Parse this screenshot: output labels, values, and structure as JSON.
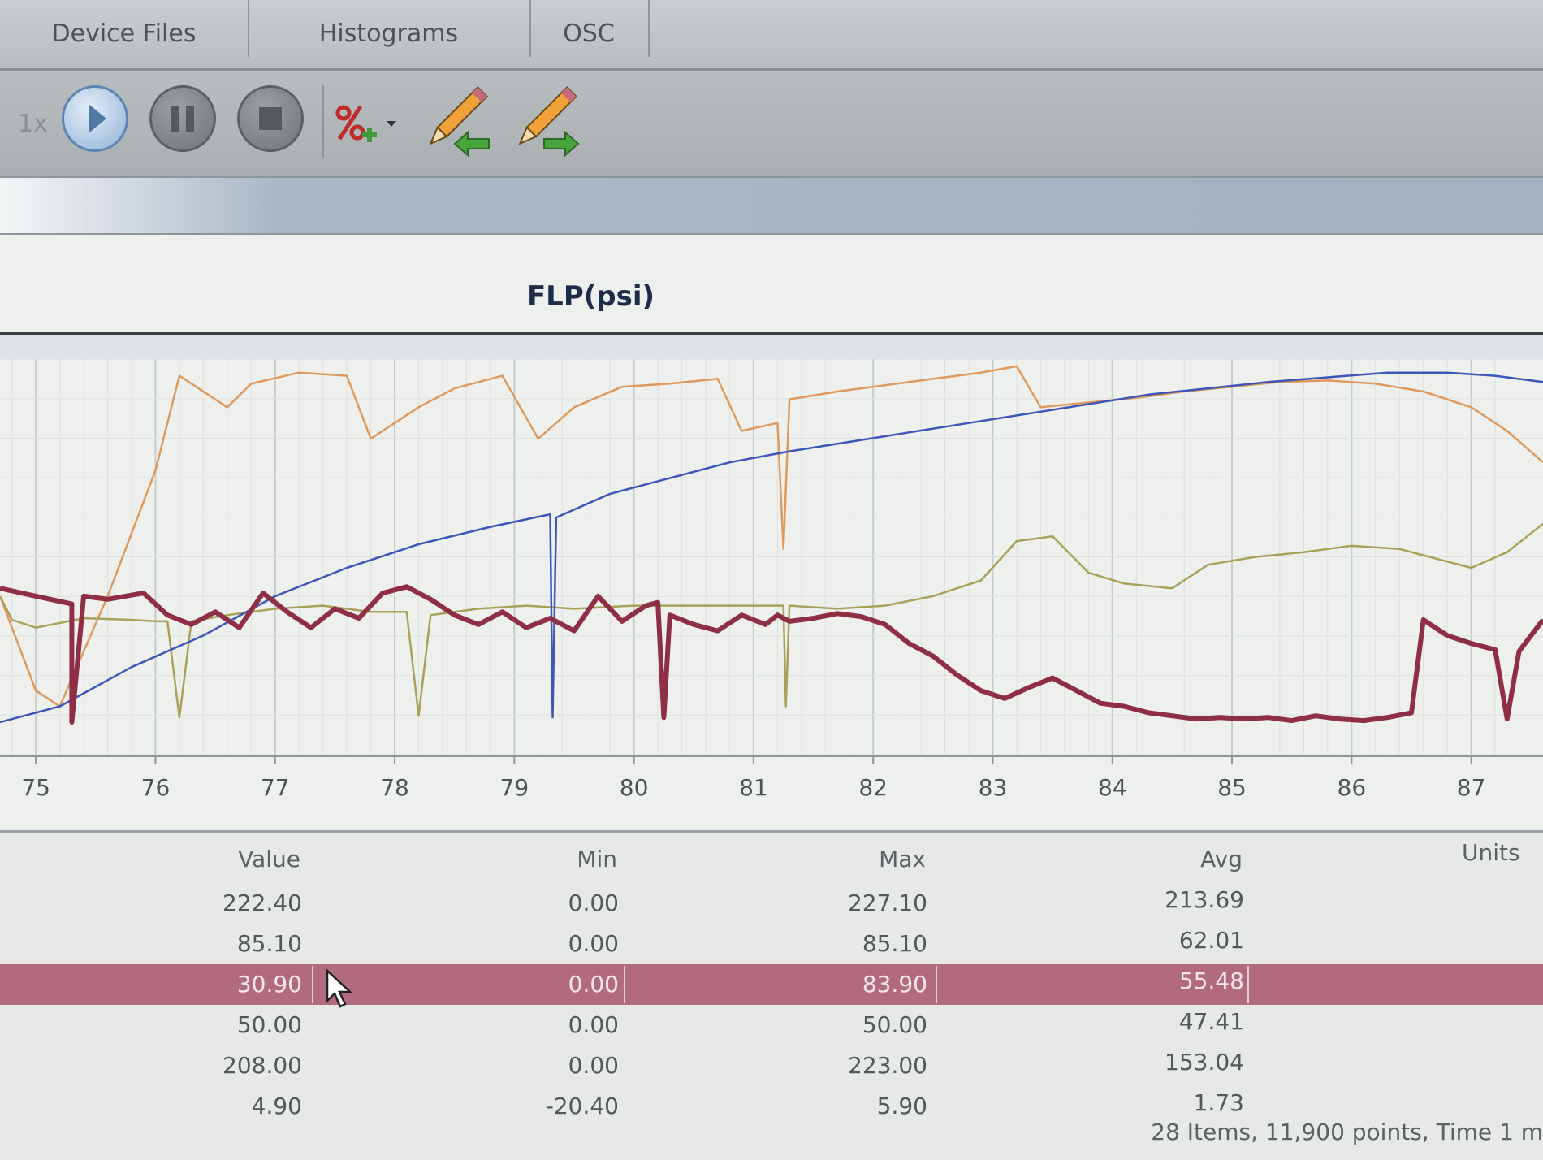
{
  "tabs": [
    "Device Files",
    "Histograms",
    "OSC"
  ],
  "toolbar": {
    "speed": "1x",
    "buttons": [
      "play-icon",
      "pause-icon",
      "stop-icon",
      "add-percent-icon",
      "pencil-left-icon",
      "pencil-right-icon"
    ]
  },
  "chart": {
    "title": "FLP(psi)",
    "x_ticks": [
      "75",
      "76",
      "77",
      "78",
      "79",
      "80",
      "81",
      "82",
      "83",
      "84",
      "85",
      "86",
      "87"
    ]
  },
  "table": {
    "headers": [
      "Value",
      "Min",
      "Max",
      "Avg",
      "Units"
    ],
    "rows": [
      [
        "222.40",
        "0.00",
        "227.10",
        "213.69"
      ],
      [
        "85.10",
        "0.00",
        "85.10",
        "62.01"
      ],
      [
        "30.90",
        "0.00",
        "83.90",
        "55.48"
      ],
      [
        "50.00",
        "0.00",
        "50.00",
        "47.41"
      ],
      [
        "208.00",
        "0.00",
        "223.00",
        "153.04"
      ],
      [
        "4.90",
        "-20.40",
        "5.90",
        "1.73"
      ]
    ],
    "selected_row": 2,
    "status": "28 Items, 11,900 points, Time 1 m"
  },
  "colors": {
    "flp_line": "#8e2f45",
    "blue_line": "#3c57b8",
    "orange_line": "#de9a5e",
    "olive_line": "#a9a15a",
    "selected_row": "#b26a7f"
  },
  "chart_data": {
    "type": "line",
    "title": "FLP(psi)",
    "x_range": [
      74.7,
      87.6
    ],
    "x_ticks": [
      75,
      76,
      77,
      78,
      79,
      80,
      81,
      82,
      83,
      84,
      85,
      86,
      87
    ],
    "y_range": [
      0,
      227
    ],
    "grid": true,
    "series": [
      {
        "color": "#8e2f45",
        "points": [
          [
            74.7,
            85
          ],
          [
            75.0,
            80
          ],
          [
            75.3,
            75
          ],
          [
            75.3,
            0
          ],
          [
            75.4,
            80
          ],
          [
            75.6,
            78
          ],
          [
            75.9,
            82
          ],
          [
            76.1,
            68
          ],
          [
            76.3,
            62
          ],
          [
            76.5,
            70
          ],
          [
            76.7,
            60
          ],
          [
            76.9,
            82
          ],
          [
            77.1,
            70
          ],
          [
            77.3,
            60
          ],
          [
            77.5,
            72
          ],
          [
            77.7,
            66
          ],
          [
            77.9,
            82
          ],
          [
            78.1,
            86
          ],
          [
            78.3,
            78
          ],
          [
            78.5,
            68
          ],
          [
            78.7,
            62
          ],
          [
            78.9,
            70
          ],
          [
            79.1,
            60
          ],
          [
            79.3,
            66
          ],
          [
            79.5,
            58
          ],
          [
            79.7,
            80
          ],
          [
            79.9,
            64
          ],
          [
            80.1,
            74
          ],
          [
            80.2,
            76
          ],
          [
            80.25,
            3
          ],
          [
            80.3,
            68
          ],
          [
            80.5,
            62
          ],
          [
            80.7,
            58
          ],
          [
            80.9,
            68
          ],
          [
            81.1,
            62
          ],
          [
            81.2,
            68
          ],
          [
            81.3,
            64
          ],
          [
            81.5,
            66
          ],
          [
            81.7,
            69
          ],
          [
            81.9,
            67
          ],
          [
            82.1,
            62
          ],
          [
            82.3,
            50
          ],
          [
            82.5,
            42
          ],
          [
            82.7,
            30
          ],
          [
            82.9,
            20
          ],
          [
            83.1,
            15
          ],
          [
            83.3,
            22
          ],
          [
            83.5,
            28
          ],
          [
            83.7,
            20
          ],
          [
            83.9,
            12
          ],
          [
            84.1,
            10
          ],
          [
            84.3,
            6
          ],
          [
            84.5,
            4
          ],
          [
            84.7,
            2
          ],
          [
            84.9,
            3
          ],
          [
            85.1,
            2
          ],
          [
            85.3,
            3
          ],
          [
            85.5,
            1
          ],
          [
            85.7,
            4
          ],
          [
            85.9,
            2
          ],
          [
            86.1,
            1
          ],
          [
            86.3,
            3
          ],
          [
            86.5,
            6
          ],
          [
            86.6,
            65
          ],
          [
            86.8,
            55
          ],
          [
            87.0,
            50
          ],
          [
            87.2,
            46
          ],
          [
            87.3,
            2
          ],
          [
            87.4,
            45
          ],
          [
            87.6,
            65
          ]
        ]
      },
      {
        "color": "#3c57b8",
        "points": [
          [
            74.7,
            0
          ],
          [
            75.2,
            10
          ],
          [
            75.8,
            35
          ],
          [
            76.4,
            55
          ],
          [
            77.0,
            80
          ],
          [
            77.6,
            98
          ],
          [
            78.2,
            113
          ],
          [
            78.8,
            124
          ],
          [
            79.3,
            132
          ],
          [
            79.32,
            3
          ],
          [
            79.35,
            130
          ],
          [
            79.8,
            145
          ],
          [
            80.3,
            155
          ],
          [
            80.8,
            165
          ],
          [
            81.3,
            172
          ],
          [
            81.8,
            178
          ],
          [
            82.3,
            184
          ],
          [
            82.8,
            190
          ],
          [
            83.3,
            196
          ],
          [
            83.8,
            202
          ],
          [
            84.3,
            208
          ],
          [
            84.8,
            212
          ],
          [
            85.3,
            216
          ],
          [
            85.8,
            219
          ],
          [
            86.3,
            222
          ],
          [
            86.8,
            222
          ],
          [
            87.2,
            220
          ],
          [
            87.6,
            216
          ]
        ]
      },
      {
        "color": "#de9a5e",
        "points": [
          [
            74.7,
            80
          ],
          [
            74.8,
            60
          ],
          [
            75.0,
            20
          ],
          [
            75.2,
            10
          ],
          [
            75.6,
            80
          ],
          [
            76.0,
            160
          ],
          [
            76.1,
            190
          ],
          [
            76.2,
            220
          ],
          [
            76.6,
            200
          ],
          [
            76.8,
            215
          ],
          [
            77.2,
            222
          ],
          [
            77.6,
            220
          ],
          [
            77.8,
            180
          ],
          [
            78.2,
            200
          ],
          [
            78.5,
            212
          ],
          [
            78.9,
            220
          ],
          [
            79.2,
            180
          ],
          [
            79.5,
            200
          ],
          [
            79.9,
            213
          ],
          [
            80.3,
            215
          ],
          [
            80.7,
            218
          ],
          [
            80.9,
            185
          ],
          [
            81.2,
            190
          ],
          [
            81.25,
            110
          ],
          [
            81.3,
            205
          ],
          [
            81.7,
            210
          ],
          [
            82.1,
            214
          ],
          [
            82.5,
            218
          ],
          [
            82.9,
            222
          ],
          [
            83.2,
            226
          ],
          [
            83.4,
            200
          ],
          [
            83.8,
            203
          ],
          [
            84.2,
            206
          ],
          [
            84.6,
            210
          ],
          [
            85.0,
            213
          ],
          [
            85.4,
            216
          ],
          [
            85.8,
            217
          ],
          [
            86.2,
            215
          ],
          [
            86.6,
            210
          ],
          [
            87.0,
            200
          ],
          [
            87.3,
            185
          ],
          [
            87.6,
            165
          ]
        ]
      },
      {
        "color": "#a9a15a",
        "points": [
          [
            74.7,
            80
          ],
          [
            74.8,
            65
          ],
          [
            75.0,
            60
          ],
          [
            75.4,
            66
          ],
          [
            75.8,
            65
          ],
          [
            76.0,
            64
          ],
          [
            76.1,
            64
          ],
          [
            76.2,
            3
          ],
          [
            76.3,
            64
          ],
          [
            76.6,
            68
          ],
          [
            77.0,
            72
          ],
          [
            77.4,
            74
          ],
          [
            77.8,
            70
          ],
          [
            78.0,
            70
          ],
          [
            78.1,
            70
          ],
          [
            78.2,
            4
          ],
          [
            78.3,
            68
          ],
          [
            78.7,
            72
          ],
          [
            79.1,
            74
          ],
          [
            79.5,
            72
          ],
          [
            80.0,
            74
          ],
          [
            80.5,
            74
          ],
          [
            81.0,
            74
          ],
          [
            81.25,
            74
          ],
          [
            81.27,
            10
          ],
          [
            81.3,
            74
          ],
          [
            81.7,
            72
          ],
          [
            82.1,
            74
          ],
          [
            82.5,
            80
          ],
          [
            82.9,
            90
          ],
          [
            83.2,
            115
          ],
          [
            83.5,
            118
          ],
          [
            83.8,
            95
          ],
          [
            84.1,
            88
          ],
          [
            84.5,
            85
          ],
          [
            84.8,
            100
          ],
          [
            85.2,
            105
          ],
          [
            85.6,
            108
          ],
          [
            86.0,
            112
          ],
          [
            86.4,
            110
          ],
          [
            86.8,
            102
          ],
          [
            87.0,
            98
          ],
          [
            87.3,
            108
          ],
          [
            87.6,
            126
          ]
        ]
      }
    ]
  }
}
